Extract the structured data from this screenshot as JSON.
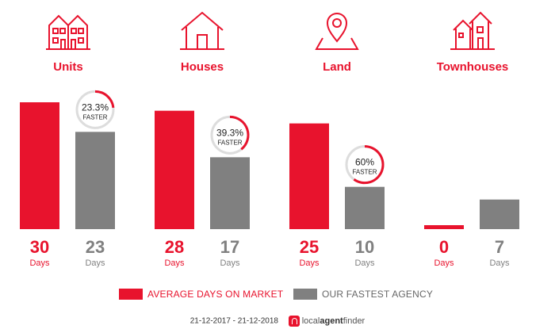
{
  "chart_data": {
    "type": "bar",
    "categories": [
      "Units",
      "Houses",
      "Land",
      "Townhouses"
    ],
    "series": [
      {
        "name": "AVERAGE DAYS ON MARKET",
        "values": [
          30,
          28,
          25,
          0
        ],
        "color": "#e8132d"
      },
      {
        "name": "OUR FASTEST AGENCY",
        "values": [
          23,
          17,
          10,
          7
        ],
        "color": "#808080"
      }
    ],
    "unit_label": "Days",
    "faster_badges": [
      {
        "percent": "23.3%",
        "label": "FASTER",
        "fraction": 0.233
      },
      {
        "percent": "39.3%",
        "label": "FASTER",
        "fraction": 0.393
      },
      {
        "percent": "60%",
        "label": "FASTER",
        "fraction": 0.6
      },
      null
    ],
    "ylim": [
      0,
      30
    ],
    "legend_position": "bottom"
  },
  "icons": [
    "units-icon",
    "house-icon",
    "land-pin-icon",
    "townhouses-icon"
  ],
  "footer": {
    "date_range": "21-12-2017 - 21-12-2018",
    "brand_light": "local",
    "brand_bold": "agent",
    "brand_end": "finder"
  }
}
